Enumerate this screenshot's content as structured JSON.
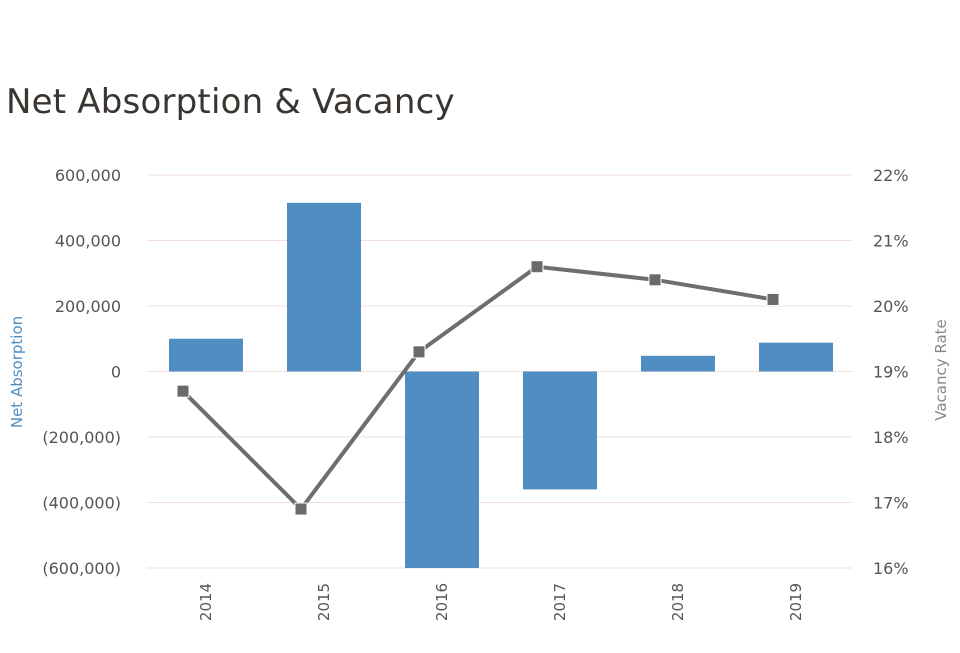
{
  "title": "Net Absorption & Vacancy",
  "colors": {
    "bar": "#4f8dc2",
    "line": "#6e6e6e",
    "marker": "#6a6a6a",
    "gridline": "#f3dede",
    "title": "#3a3530",
    "left_axis_title": "#4f8dc2",
    "right_axis_title": "#888888"
  },
  "chart_data": {
    "type": "bar",
    "title": "Net Absorption & Vacancy",
    "categories": [
      "2014",
      "2015",
      "2016",
      "2017",
      "2018",
      "2019"
    ],
    "series": [
      {
        "name": "Net Absorption",
        "type": "bar",
        "axis": "left",
        "values": [
          100000,
          515000,
          -605000,
          -360000,
          48000,
          88000
        ]
      },
      {
        "name": "Vacancy Rate",
        "type": "line",
        "axis": "right",
        "values": [
          18.7,
          16.9,
          19.3,
          20.6,
          20.4,
          20.1
        ]
      }
    ],
    "ylabel": "Net Absorption",
    "y2label": "Vacancy Rate",
    "ylim": [
      -600000,
      600000
    ],
    "y2lim": [
      16,
      22
    ],
    "y_ticks": [
      "600,000",
      "400,000",
      "200,000",
      "0",
      "(200,000)",
      "(400,000)",
      "(600,000)"
    ],
    "y2_ticks": [
      "22%",
      "21%",
      "20%",
      "19%",
      "18%",
      "17%",
      "16%"
    ],
    "grid": true,
    "legend": "none"
  }
}
